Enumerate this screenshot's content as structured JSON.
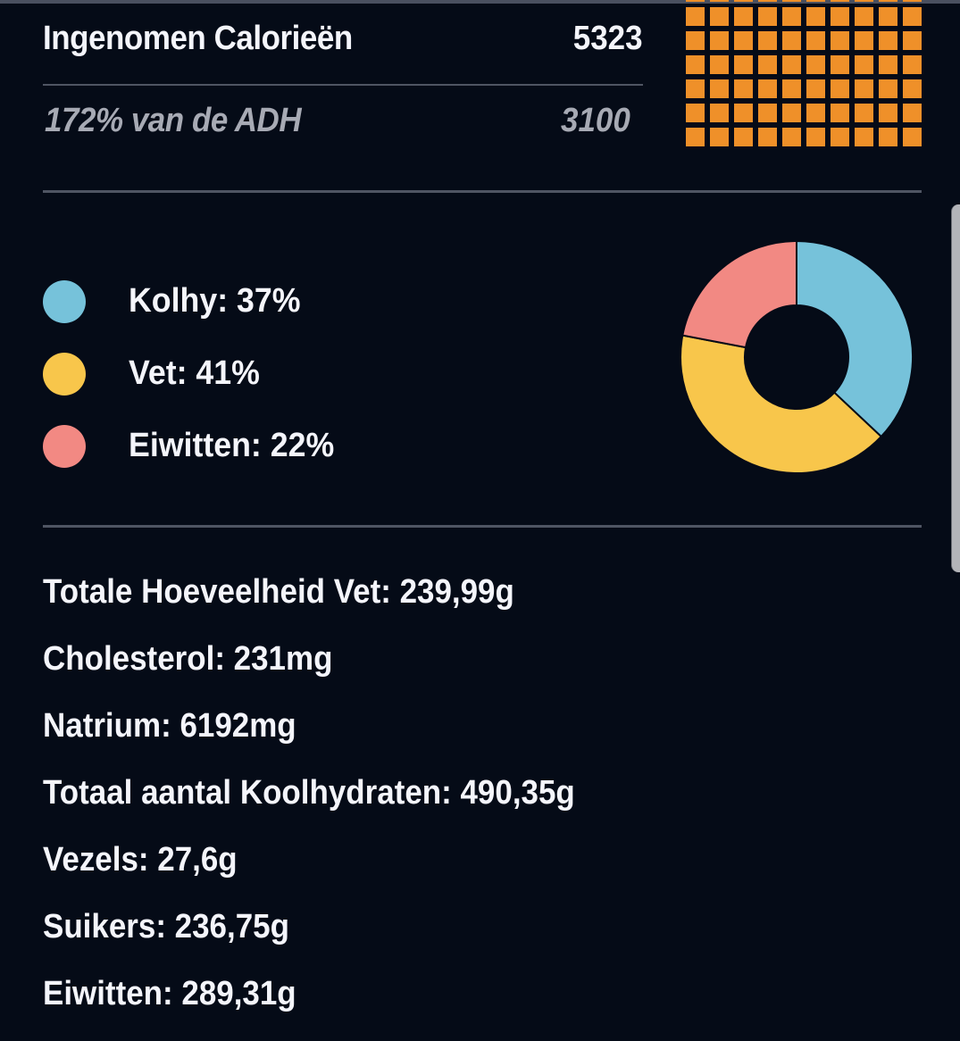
{
  "calories": {
    "title": "Ingenomen Calorieën",
    "value": "5323",
    "adh_text": "172% van de ADH",
    "adh_value": "3100",
    "waffle_color": "#ef9029",
    "waffle_rows": 6,
    "waffle_cols": 10
  },
  "macros": {
    "legend": [
      {
        "label": "Kolhy: 37%",
        "color": "#76c2da",
        "percent": 37
      },
      {
        "label": "Vet: 41%",
        "color": "#f8c64b",
        "percent": 41
      },
      {
        "label": "Eiwitten: 22%",
        "color": "#f28983",
        "percent": 22
      }
    ]
  },
  "nutrients": [
    "Totale Hoeveelheid Vet: 239,99g",
    "Cholesterol: 231mg",
    "Natrium: 6192mg",
    "Totaal aantal Koolhydraten: 490,35g",
    "Vezels: 27,6g",
    "Suikers: 236,75g",
    "Eiwitten: 289,31g"
  ],
  "chart_data": {
    "type": "pie",
    "subtype": "donut",
    "categories": [
      "Kolhy",
      "Vet",
      "Eiwitten"
    ],
    "values": [
      37,
      41,
      22
    ],
    "colors": [
      "#76c2da",
      "#f8c64b",
      "#f28983"
    ],
    "title": "",
    "legend_position": "left"
  }
}
